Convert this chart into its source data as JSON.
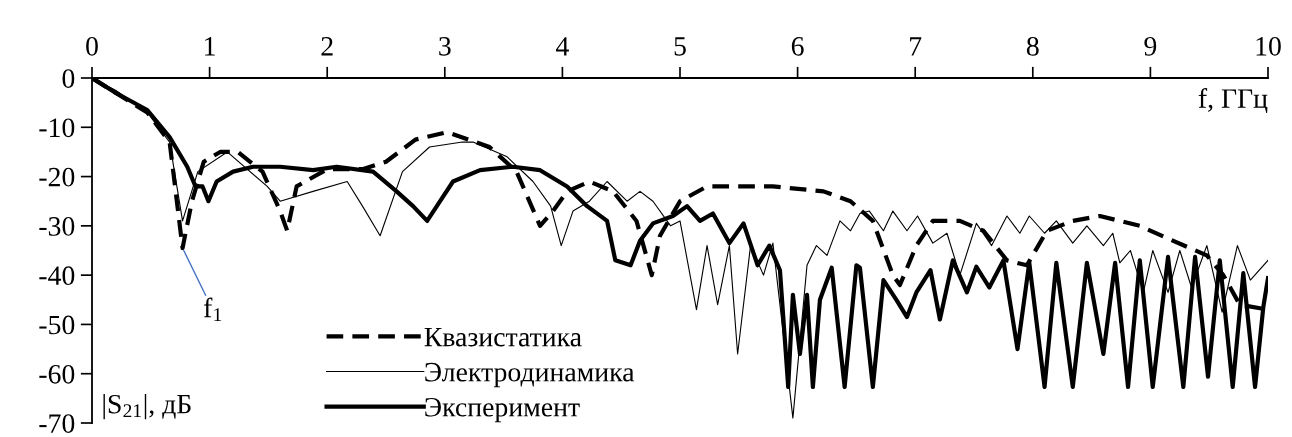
{
  "chart_data": {
    "type": "line",
    "xlabel": "f, ГГц",
    "ylabel": "|S$_{21}$|, дБ",
    "xlim": [
      0,
      10
    ],
    "xticks": [
      0,
      1,
      2,
      3,
      4,
      5,
      6,
      7,
      8,
      9,
      10
    ],
    "ylim": [
      -70,
      0
    ],
    "yticks": [
      0,
      -10,
      -20,
      -30,
      -40,
      -50,
      -60,
      -70
    ],
    "grid": false,
    "legend": "bottom left",
    "marker": "none",
    "annotations": [
      {
        "text": "f$_{1}$",
        "x": 0.77,
        "y": -34.5
      }
    ],
    "series": [
      {
        "name": "Квазистатика",
        "color": "#000000",
        "line_style": "dashed",
        "x": [
          0,
          0.2,
          0.47,
          0.66,
          0.77,
          0.85,
          0.95,
          1.09,
          1.24,
          1.45,
          1.6,
          1.66,
          1.74,
          2.0,
          2.3,
          2.5,
          2.75,
          3.02,
          3.38,
          3.61,
          3.81,
          3.92,
          4.04,
          4.23,
          4.43,
          4.63,
          4.76,
          4.83,
          5.0,
          5.23,
          5.79,
          6.22,
          6.45,
          6.64,
          6.81,
          6.87,
          7.01,
          7.15,
          7.38,
          7.58,
          7.78,
          7.95,
          8.12,
          8.34,
          8.57,
          8.91,
          9.19,
          9.48,
          9.62,
          9.76,
          10.0
        ],
        "values": [
          0,
          -3,
          -7,
          -13,
          -34.5,
          -25,
          -17,
          -15,
          -15,
          -19,
          -27,
          -31,
          -22,
          -18.5,
          -18.5,
          -17,
          -12.5,
          -11,
          -14,
          -19,
          -30,
          -27,
          -23,
          -21,
          -23,
          -29,
          -40,
          -32,
          -25,
          -22,
          -22,
          -23,
          -25,
          -29,
          -40,
          -42,
          -34,
          -29,
          -29,
          -31,
          -37,
          -38,
          -31,
          -29,
          -28,
          -30,
          -33,
          -36,
          -40,
          -46,
          -47
        ]
      },
      {
        "name": "Электродинамика",
        "color": "#000000",
        "line_style": "solid",
        "x": [
          0,
          0.2,
          0.47,
          0.66,
          0.77,
          0.9,
          1.15,
          1.49,
          1.6,
          1.88,
          2.17,
          2.3,
          2.45,
          2.64,
          2.87,
          3.15,
          3.24,
          3.53,
          3.75,
          3.9,
          3.99,
          4.09,
          4.23,
          4.38,
          4.55,
          4.66,
          4.77,
          4.92,
          5.0,
          5.14,
          5.23,
          5.32,
          5.42,
          5.49,
          5.6,
          5.71,
          5.79,
          5.96,
          6.08,
          6.16,
          6.25,
          6.36,
          6.45,
          6.53,
          6.61,
          6.73,
          6.81,
          6.93,
          7.02,
          7.15,
          7.27,
          7.38,
          7.52,
          7.65,
          7.78,
          7.89,
          7.97,
          8.1,
          8.2,
          8.34,
          8.46,
          8.6,
          8.68,
          8.74,
          8.83,
          8.94,
          9.02,
          9.15,
          9.25,
          9.35,
          9.48,
          9.61,
          9.74,
          9.85,
          10.0
        ],
        "values": [
          0,
          -2.5,
          -7,
          -13,
          -29,
          -19,
          -15,
          -22,
          -25,
          -23,
          -21,
          -26,
          -32,
          -19,
          -14,
          -13,
          -13,
          -16,
          -21,
          -26,
          -34,
          -27,
          -25,
          -21,
          -25,
          -23,
          -25,
          -30,
          -29,
          -47,
          -34,
          -46,
          -34,
          -56,
          -34,
          -40,
          -33.5,
          -69,
          -38,
          -34,
          -36,
          -29,
          -31,
          -27.5,
          -27,
          -31,
          -27,
          -31,
          -28,
          -33.5,
          -31.5,
          -40,
          -29.5,
          -34,
          -28,
          -31.5,
          -28,
          -31.5,
          -29,
          -33.5,
          -30,
          -34,
          -31.5,
          -37.5,
          -35,
          -43.5,
          -35,
          -43.5,
          -35,
          -42.5,
          -34,
          -47.5,
          -34,
          -41,
          -37
        ]
      },
      {
        "name": "Эксперимент",
        "color": "#000000",
        "line_style": "solid",
        "x": [
          0,
          0.2,
          0.47,
          0.66,
          0.81,
          0.88,
          0.94,
          0.99,
          1.06,
          1.2,
          1.37,
          1.6,
          1.88,
          2.08,
          2.39,
          2.59,
          2.73,
          2.85,
          2.96,
          3.07,
          3.3,
          3.58,
          3.81,
          4.04,
          4.21,
          4.38,
          4.45,
          4.58,
          4.66,
          4.77,
          4.94,
          5.06,
          5.17,
          5.28,
          5.42,
          5.54,
          5.66,
          5.76,
          5.85,
          5.92,
          5.96,
          6.02,
          6.08,
          6.13,
          6.19,
          6.29,
          6.4,
          6.5,
          6.53,
          6.64,
          6.73,
          6.84,
          6.93,
          7.01,
          7.13,
          7.21,
          7.32,
          7.44,
          7.52,
          7.63,
          7.75,
          7.87,
          7.97,
          8.1,
          8.2,
          8.34,
          8.46,
          8.6,
          8.7,
          8.81,
          8.91,
          9.02,
          9.15,
          9.28,
          9.38,
          9.49,
          9.59,
          9.7,
          9.79,
          9.89,
          9.96,
          10.0
        ],
        "values": [
          0,
          -3,
          -6.5,
          -12,
          -18,
          -22,
          -22,
          -25,
          -21,
          -19,
          -18,
          -18,
          -18.7,
          -18,
          -19,
          -23,
          -26,
          -29,
          -25,
          -21,
          -18.7,
          -18,
          -18.7,
          -22,
          -26,
          -29,
          -37,
          -38,
          -33,
          -29.5,
          -28,
          -26,
          -29,
          -27.5,
          -33.5,
          -29.5,
          -38,
          -34,
          -39,
          -62.7,
          -44,
          -56,
          -44,
          -62.7,
          -45,
          -38.5,
          -62.7,
          -38,
          -38.5,
          -62.7,
          -41,
          -45,
          -48.5,
          -43.5,
          -39,
          -49,
          -37,
          -43.5,
          -38.3,
          -42.5,
          -37,
          -55,
          -37.5,
          -62.7,
          -37.5,
          -62.7,
          -37.5,
          -56,
          -37.5,
          -62.7,
          -37,
          -62.7,
          -36.3,
          -62.7,
          -36.3,
          -60.6,
          -37,
          -62.7,
          -39.6,
          -62.7,
          -46.5,
          -40.6
        ]
      }
    ]
  }
}
